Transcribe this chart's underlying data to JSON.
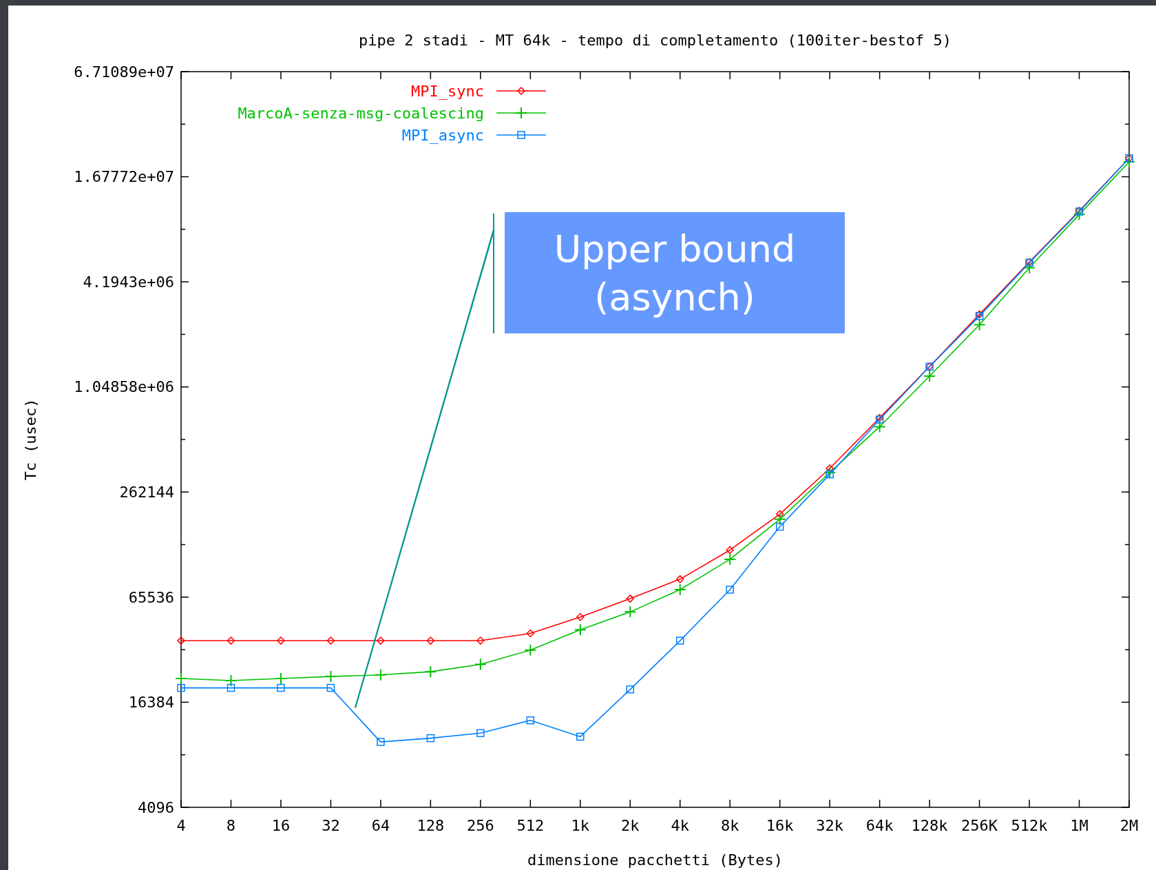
{
  "chart_data": {
    "type": "line",
    "title": "pipe 2 stadi - MT 64k - tempo di completamento (100iter-bestof 5)",
    "xlabel": "dimensione pacchetti (Bytes)",
    "ylabel": "Tc (usec)",
    "categories": [
      "4",
      "8",
      "16",
      "32",
      "64",
      "128",
      "256",
      "512",
      "1k",
      "2k",
      "4k",
      "8k",
      "16k",
      "32k",
      "64k",
      "128k",
      "256K",
      "512k",
      "1M",
      "2M"
    ],
    "log": "y",
    "ylim": [
      4096,
      67108864
    ],
    "yticks": [
      4096,
      {
        "value": 8192,
        "label": null
      },
      16384,
      {
        "value": 32768,
        "label": null
      },
      65536,
      {
        "value": 131072,
        "label": null
      },
      262144,
      {
        "value": 524288,
        "label": null
      },
      {
        "value": 1048576,
        "label": "1.04858e+06"
      },
      {
        "value": 2097152,
        "label": null
      },
      {
        "value": 4194304,
        "label": "4.1943e+06"
      },
      {
        "value": 8388608,
        "label": null
      },
      {
        "value": 16777216,
        "label": "1.67772e+07"
      },
      {
        "value": 33554432,
        "label": null
      },
      {
        "value": 67108864,
        "label": "6.71089e+07"
      }
    ],
    "legend": "top left",
    "grid": false,
    "annotations": [
      "Upper bound\n(asynch)"
    ],
    "series": [
      {
        "name": "MPI_sync",
        "color": "#ff0000",
        "marker": "diamond",
        "values": [
          36900,
          36900,
          36900,
          36900,
          36900,
          36900,
          36900,
          40600,
          50400,
          64200,
          83000,
          122000,
          196000,
          358000,
          697000,
          1374000,
          2730000,
          5450000,
          10700000,
          21400000
        ]
      },
      {
        "name": "MarcoA-senza-msg-coalescing",
        "color": "#00c000",
        "marker": "cross",
        "values": [
          22400,
          21800,
          22400,
          23000,
          23500,
          24500,
          27000,
          32600,
          42600,
          53900,
          72300,
          108000,
          183000,
          339000,
          620000,
          1210000,
          2380000,
          5050000,
          10200000,
          20400000
        ]
      },
      {
        "name": "MPI_async",
        "color": "#0080ff",
        "marker": "square",
        "values": [
          19800,
          19800,
          19800,
          19800,
          9700,
          10200,
          10900,
          12900,
          10400,
          19400,
          36900,
          72300,
          166000,
          331000,
          682000,
          1370000,
          2670000,
          5400000,
          10600000,
          21400000
        ]
      }
    ]
  }
}
